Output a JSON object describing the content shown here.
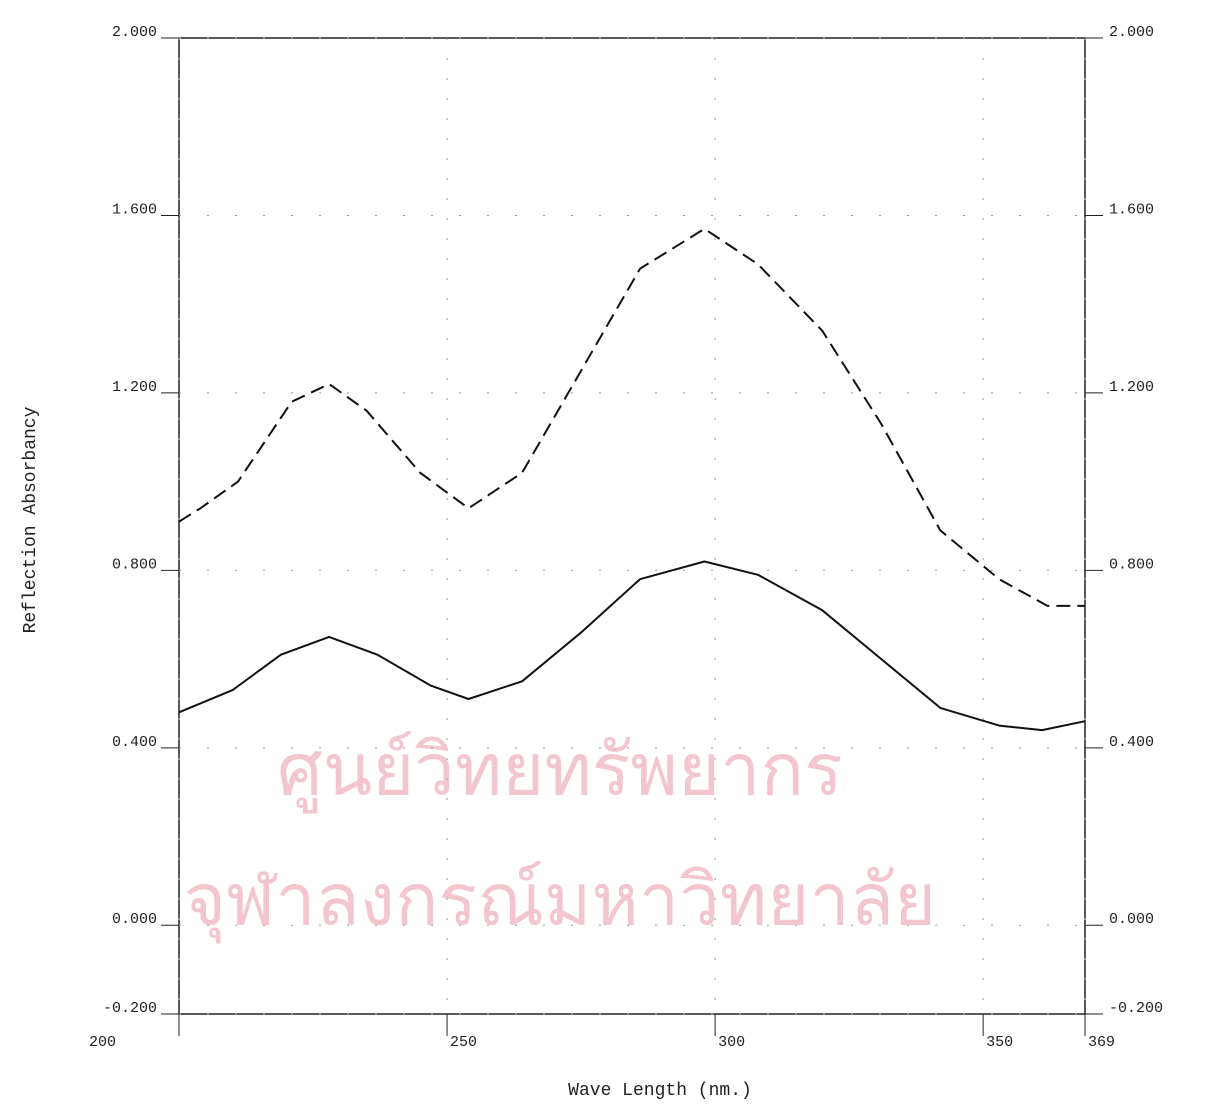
{
  "chart_data": {
    "type": "line",
    "watermark": [
      "ศูนย์วิทยทรัพยากร",
      "จุฬาลงกรณ์มหาวิทยาลัย"
    ],
    "xlabel": "Wave Length (nm.)",
    "ylabel": "Reflection Absorbancy",
    "xlim": [
      200,
      369
    ],
    "xticks": [
      200,
      250,
      300,
      350,
      369
    ],
    "ylim": [
      -0.2,
      2.0
    ],
    "yticks": [
      {
        "value": -0.2,
        "label": "-0.200"
      },
      {
        "value": 0,
        "label": "0.000"
      },
      {
        "value": 0.4,
        "label": "0.400"
      },
      {
        "value": 0.8,
        "label": "0.800"
      },
      {
        "value": 1.2,
        "label": "1.200"
      },
      {
        "value": 1.6,
        "label": "1.600"
      },
      {
        "value": 2.0,
        "label": "2.000"
      }
    ],
    "series": [
      {
        "color": "#111111",
        "dash": true,
        "x": [
          200,
          204,
          211,
          221,
          228,
          235,
          245,
          254,
          264,
          275,
          286,
          298,
          308,
          320,
          331,
          342,
          353,
          362,
          369
        ],
        "values": [
          0.91,
          0.94,
          1.0,
          1.18,
          1.22,
          1.16,
          1.02,
          0.94,
          1.02,
          1.25,
          1.48,
          1.57,
          1.49,
          1.34,
          1.13,
          0.89,
          0.78,
          0.72,
          0.72
        ]
      },
      {
        "color": "#111111",
        "dash": false,
        "x": [
          200,
          210,
          219,
          228,
          237,
          247,
          254,
          264,
          275,
          286,
          298,
          308,
          320,
          331,
          342,
          353,
          361,
          369
        ],
        "values": [
          0.48,
          0.53,
          0.61,
          0.65,
          0.61,
          0.54,
          0.51,
          0.55,
          0.66,
          0.78,
          0.82,
          0.79,
          0.71,
          0.6,
          0.49,
          0.45,
          0.44,
          0.46
        ]
      }
    ]
  }
}
